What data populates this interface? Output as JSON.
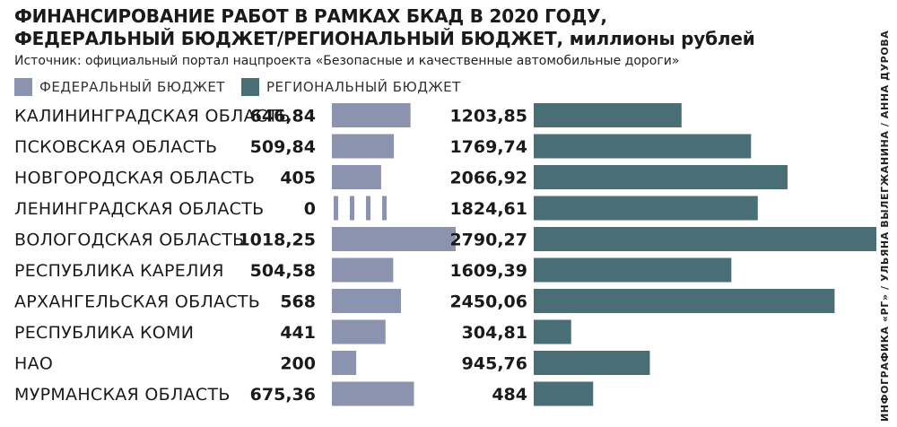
{
  "header": {
    "title_line1": "ФИНАНСИРОВАНИЕ РАБОТ В РАМКАХ БКАД В 2020 ГОДУ,",
    "title_line2": "ФЕДЕРАЛЬНЫЙ БЮДЖЕТ/РЕГИОНАЛЬНЫЙ БЮДЖЕТ,",
    "title_unit": "миллионы рублей",
    "source": "Источник: официальный портал нацпроекта «Безопасные и качественные автомобильные дороги»"
  },
  "legend": {
    "federal": "ФЕДЕРАЛЬНЫЙ БЮДЖЕТ",
    "regional": "РЕГИОНАЛЬНЫЙ БЮДЖЕТ"
  },
  "credit": "ИНФОГРАФИКА «РГ» / УЛЬЯНА ВЫЛЕГЖАНИНА / АННА ДУРОВА",
  "colors": {
    "federal": "#8b93ae",
    "regional": "#4a6e75",
    "text": "#1a1a1a"
  },
  "chart_data": {
    "type": "bar",
    "title": "ФИНАНСИРОВАНИЕ РАБОТ В РАМКАХ БКАД В 2020 ГОДУ, ФЕДЕРАЛЬНЫЙ БЮДЖЕТ/РЕГИОНАЛЬНЫЙ БЮДЖЕТ, миллионы рублей",
    "categories": [
      "КАЛИНИНГРАДСКАЯ ОБЛАСТЬ",
      "ПСКОВСКАЯ ОБЛАСТЬ",
      "НОВГОРОДСКАЯ ОБЛАСТЬ",
      "ЛЕНИНГРАДСКАЯ ОБЛАСТЬ",
      "ВОЛОГОДСКАЯ ОБЛАСТЬ",
      "РЕСПУБЛИКА КАРЕЛИЯ",
      "АРХАНГЕЛЬСКАЯ ОБЛАСТЬ",
      "РЕСПУБЛИКА КОМИ",
      "НАО",
      "МУРМАНСКАЯ ОБЛАСТЬ"
    ],
    "series": [
      {
        "name": "ФЕДЕРАЛЬНЫЙ БЮДЖЕТ",
        "values": [
          646.84,
          509.84,
          405,
          0,
          1018.25,
          504.58,
          568,
          441,
          200,
          675.36
        ],
        "labels": [
          "646,84",
          "509,84",
          "405",
          "0",
          "1018,25",
          "504,58",
          "568",
          "441",
          "200",
          "675,36"
        ]
      },
      {
        "name": "РЕГИОНАЛЬНЫЙ БЮДЖЕТ",
        "values": [
          1203.85,
          1769.74,
          2066.92,
          1824.61,
          2790.27,
          1609.39,
          2450.06,
          304.81,
          945.76,
          484
        ],
        "labels": [
          "1203,85",
          "1769,74",
          "2066,92",
          "1824,61",
          "2790,27",
          "1609,39",
          "2450,06",
          "304,81",
          "945,76",
          "484"
        ]
      }
    ],
    "legend_position": "top-left",
    "grid": false
  }
}
